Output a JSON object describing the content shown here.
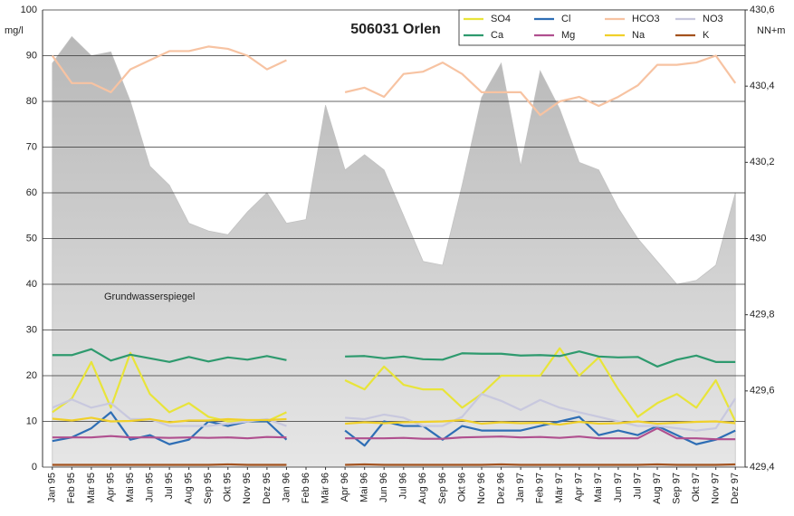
{
  "chart_data": {
    "type": "line",
    "title": "506031 Orlen",
    "ylabel": "mg/l",
    "y2label": "NN+m",
    "categories": [
      "Jan 95",
      "Feb 95",
      "Mär 95",
      "Apr 95",
      "Mai 95",
      "Jun 95",
      "Jul 95",
      "Aug 95",
      "Sep 95",
      "Okt 95",
      "Nov 95",
      "Dez 95",
      "Jan 96",
      "Feb 96",
      "Mär 96",
      "Apr 96",
      "Mai 96",
      "Jun 96",
      "Jul 96",
      "Aug 96",
      "Sep 96",
      "Okt 96",
      "Nov 96",
      "Dez 96",
      "Jan 97",
      "Feb 97",
      "Mär 97",
      "Apr 97",
      "Mai 97",
      "Jun 97",
      "Jul 97",
      "Aug 97",
      "Sep 97",
      "Okt 97",
      "Nov 97",
      "Dez 97"
    ],
    "ylim": [
      0,
      100
    ],
    "yticks": [
      0,
      10,
      20,
      30,
      40,
      50,
      60,
      70,
      80,
      90,
      100
    ],
    "y2lim": [
      429.4,
      430.6
    ],
    "y2ticks": [
      {
        "value": 429.4,
        "label": "429,4"
      },
      {
        "value": 429.6,
        "label": "429,6"
      },
      {
        "value": 429.8,
        "label": "429,8"
      },
      430,
      {
        "value": 430.2,
        "label": "430,2"
      },
      {
        "value": 430.4,
        "label": "430,4"
      },
      {
        "value": 430.6,
        "label": "430,6"
      }
    ],
    "grid": true,
    "series": [
      {
        "name": "SO4",
        "color": "#e8e43a",
        "values": [
          12,
          15,
          23,
          13,
          25,
          16,
          12,
          14,
          11,
          10,
          10,
          10,
          12,
          null,
          null,
          19,
          17,
          22,
          18,
          17,
          17,
          13,
          16,
          20,
          20,
          20,
          26,
          20,
          24,
          17,
          11,
          14,
          16,
          13,
          19,
          10
        ]
      },
      {
        "name": "Cl",
        "color": "#2e6eb5",
        "values": [
          5.7,
          6.5,
          8.5,
          12,
          6,
          7,
          5,
          6,
          10,
          9,
          10,
          10,
          6,
          null,
          null,
          8,
          4.7,
          10,
          9,
          9,
          6,
          9,
          8,
          8,
          8,
          9,
          10,
          11,
          7,
          8,
          7,
          9,
          7,
          5,
          6,
          8
        ]
      },
      {
        "name": "HCO3",
        "color": "#f7c3a2",
        "values": [
          90,
          84,
          84,
          82,
          87,
          89,
          91,
          91,
          92,
          91.5,
          90,
          87,
          89,
          null,
          null,
          82,
          83,
          81,
          86,
          86.5,
          88.5,
          86,
          82,
          82,
          82,
          77,
          80,
          81,
          79,
          81,
          83.5,
          88,
          88,
          88.5,
          90,
          84
        ]
      },
      {
        "name": "NO3",
        "color": "#c8c8de",
        "values": [
          13,
          14.8,
          13,
          14,
          10.5,
          10.5,
          9,
          9,
          9,
          9.5,
          10,
          10.5,
          9,
          null,
          null,
          10.8,
          10.5,
          11.5,
          10.8,
          9,
          9,
          11,
          16,
          14.5,
          12.5,
          14.7,
          13,
          12,
          11,
          10,
          9,
          9,
          8.5,
          8,
          8.5,
          15
        ]
      },
      {
        "name": "Ca",
        "color": "#2e9a6e",
        "values": [
          24.5,
          24.5,
          25.8,
          23.3,
          24.6,
          23.8,
          23,
          24.1,
          23.1,
          24,
          23.5,
          24.3,
          23.4,
          null,
          null,
          24.2,
          24.3,
          23.8,
          24.2,
          23.6,
          23.5,
          24.9,
          24.8,
          24.8,
          24.4,
          24.5,
          24.3,
          25.3,
          24.2,
          24,
          24.1,
          22,
          23.5,
          24.4,
          23,
          23
        ]
      },
      {
        "name": "Mg",
        "color": "#b0508f",
        "values": [
          6.5,
          6.5,
          6.5,
          6.8,
          6.5,
          6.5,
          6.4,
          6.5,
          6.4,
          6.5,
          6.3,
          6.6,
          6.5,
          null,
          null,
          6.3,
          6.3,
          6.3,
          6.4,
          6.2,
          6.2,
          6.5,
          6.6,
          6.7,
          6.5,
          6.6,
          6.4,
          6.7,
          6.3,
          6.3,
          6.3,
          8.5,
          6.3,
          6.3,
          6.1,
          6.1
        ]
      },
      {
        "name": "Na",
        "color": "#f0d02a",
        "values": [
          10.6,
          10.2,
          10.8,
          10,
          10.1,
          10.5,
          9.8,
          10.2,
          10.2,
          10.5,
          10.3,
          10.3,
          10.5,
          null,
          null,
          9.5,
          9.8,
          9.6,
          9.8,
          9.9,
          10,
          10.3,
          9.5,
          9.8,
          9.6,
          9.7,
          9.3,
          9.9,
          9.5,
          9.6,
          10,
          9.5,
          9.7,
          9.9,
          10,
          9.6
        ]
      },
      {
        "name": "K",
        "color": "#a3521e",
        "values": [
          0.5,
          0.5,
          0.5,
          0.5,
          0.5,
          0.5,
          0.5,
          0.5,
          0.5,
          0.6,
          0.5,
          0.5,
          0.5,
          null,
          null,
          0.5,
          0.6,
          0.5,
          0.5,
          0.5,
          0.5,
          0.5,
          0.5,
          0.6,
          0.5,
          0.5,
          0.5,
          0.5,
          0.5,
          0.5,
          0.5,
          0.6,
          0.5,
          0.5,
          0.5,
          0.6
        ]
      },
      {
        "name": "Grundwasserspiegel",
        "type": "area",
        "axis": "y2",
        "color": "#c2c2c2",
        "values": [
          430.46,
          430.53,
          430.48,
          430.49,
          430.36,
          430.19,
          430.14,
          430.04,
          430.02,
          430.01,
          430.07,
          430.12,
          430.04,
          430.05,
          430.35,
          430.18,
          430.22,
          430.18,
          430.06,
          429.94,
          429.93,
          430.14,
          430.37,
          430.46,
          430.19,
          430.44,
          430.34,
          430.2,
          430.18,
          430.08,
          430.0,
          429.94,
          429.88,
          429.89,
          429.93,
          430.12
        ]
      }
    ]
  }
}
